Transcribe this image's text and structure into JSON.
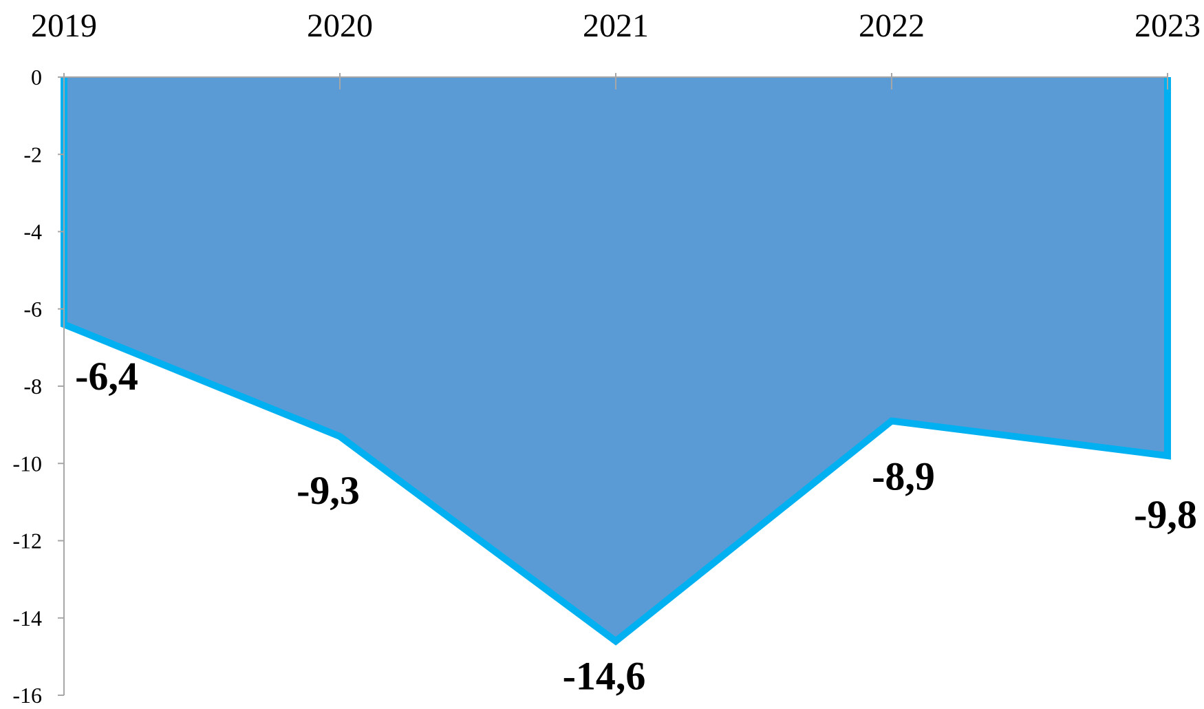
{
  "chart_data": {
    "type": "area",
    "categories": [
      "2019",
      "2020",
      "2021",
      "2022",
      "2023"
    ],
    "series": [
      {
        "values": [
          -6.4,
          -9.3,
          -14.6,
          -8.9,
          -9.8
        ],
        "labels": [
          "-6,4",
          "-9,3",
          "-14,6",
          "-8,9",
          "-9,8"
        ]
      }
    ],
    "title": "",
    "xlabel": "",
    "ylabel": "",
    "ylim": [
      -16,
      0
    ],
    "yticks": [
      0,
      -2,
      -4,
      -6,
      -8,
      -10,
      -12,
      -14,
      -16
    ],
    "ytick_labels": [
      "0",
      "-2",
      "-4",
      "-6",
      "-8",
      "-10",
      "-12",
      "-14",
      "-16"
    ],
    "x_axis_position": "top",
    "grid": false,
    "legend": "none",
    "colors": {
      "fill": "#5B9BD5",
      "line": "#00B0F0",
      "axis": "#A6A6A6"
    }
  }
}
